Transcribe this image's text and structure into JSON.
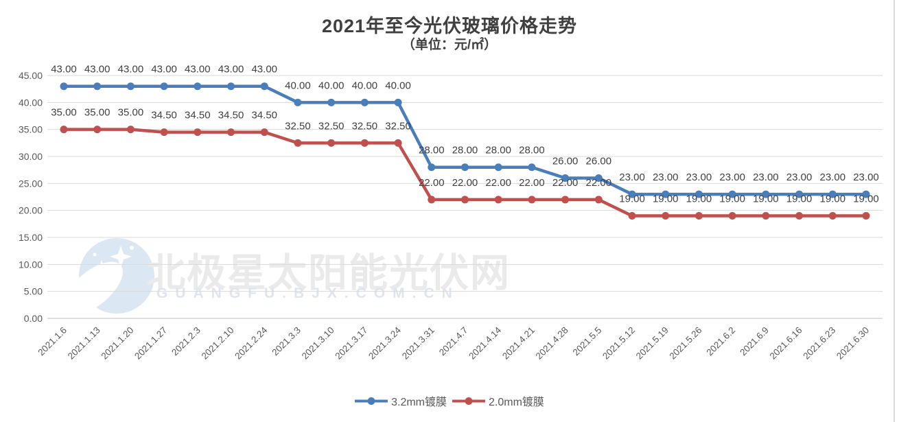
{
  "title": "2021年至今光伏玻璃价格走势",
  "subtitle": "（单位：元/㎡）",
  "watermark": {
    "cn": "北极星太阳能光伏网",
    "latin": "GUANGFU.BJX.COM.CN"
  },
  "colors": {
    "series1": "#4a7ebb",
    "series2": "#c0504d",
    "grid": "#d9d9d9",
    "axis_line": "#c0c0c0",
    "axis_text": "#595959",
    "data_label": "#404040",
    "title_text": "#404040",
    "watermark_cn_text": "#eaeaea",
    "watermark_latin_text": "#dde5f0",
    "watermark_logo": "#dce7f4"
  },
  "chart_data": {
    "type": "line",
    "title": "2021年至今光伏玻璃价格走势",
    "subtitle": "（单位：元/㎡）",
    "categories": [
      "2021.1.6",
      "2021.1.13",
      "2021.1.20",
      "2021.1.27",
      "2021.2.3",
      "2021.2.10",
      "2021.2.24",
      "2021.3.3",
      "2021.3.10",
      "2021.3.17",
      "2021.3.24",
      "2021.3.31",
      "2021.4.7",
      "2021.4.14",
      "2021.4.21",
      "2021.4.28",
      "2021.5.5",
      "2021.5.12",
      "2021.5.19",
      "2021.5.26",
      "2021.6.2",
      "2021.6.9",
      "2021.6.16",
      "2021.6.23",
      "2021.6.30"
    ],
    "series": [
      {
        "name": "3.2mm镀膜",
        "color_key": "series1",
        "values": [
          43,
          43,
          43,
          43,
          43,
          43,
          43,
          40,
          40,
          40,
          40,
          28,
          28,
          28,
          28,
          26,
          26,
          23,
          23,
          23,
          23,
          23,
          23,
          23,
          23
        ]
      },
      {
        "name": "2.0mm镀膜",
        "color_key": "series2",
        "values": [
          35,
          35,
          35,
          34.5,
          34.5,
          34.5,
          34.5,
          32.5,
          32.5,
          32.5,
          32.5,
          22,
          22,
          22,
          22,
          22,
          22,
          19,
          19,
          19,
          19,
          19,
          19,
          19,
          19
        ]
      }
    ],
    "ylim": [
      0,
      45
    ],
    "ytick_step": 5,
    "ytick_labels": [
      "0.00",
      "5.00",
      "10.00",
      "15.00",
      "20.00",
      "25.00",
      "30.00",
      "35.00",
      "40.00",
      "45.00"
    ],
    "grid": true,
    "data_labels": true,
    "x_label_rotation": 45,
    "legend_position": "bottom"
  }
}
